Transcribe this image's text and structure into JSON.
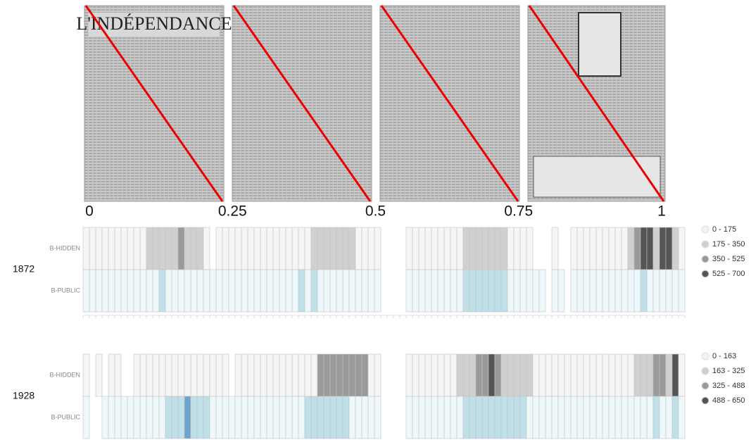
{
  "pages": {
    "newspaper_title": "L'INDÉPENDANCE",
    "ticks": [
      0,
      0.25,
      0.5,
      0.75,
      1
    ]
  },
  "chart_data": [
    {
      "type": "heatmap",
      "title": "1872",
      "bin_edges": [
        0,
        175,
        350,
        525,
        700
      ],
      "legend": {
        "labels": [
          "0 - 175",
          "175 - 350",
          "350 - 525",
          "525 - 700"
        ],
        "colors": [
          "#f3f3f3",
          "#cfcfcf",
          "#9a9a9a",
          "#555555"
        ]
      },
      "series": [
        {
          "name": "B-HIDDEN",
          "colors": [
            "#f5f5f5",
            "#d0d0d0",
            "#9a9a9a",
            "#555555"
          ],
          "values": [
            40,
            40,
            40,
            40,
            40,
            40,
            40,
            40,
            40,
            40,
            260,
            260,
            260,
            260,
            260,
            440,
            260,
            260,
            260,
            40,
            null,
            40,
            40,
            40,
            40,
            40,
            40,
            40,
            40,
            40,
            40,
            40,
            40,
            40,
            40,
            40,
            260,
            260,
            260,
            260,
            260,
            260,
            260,
            40,
            40,
            40,
            40,
            null,
            null,
            null,
            null,
            40,
            40,
            40,
            40,
            40,
            40,
            40,
            40,
            40,
            260,
            260,
            260,
            260,
            260,
            260,
            260,
            40,
            40,
            40,
            40,
            null,
            null,
            null,
            40,
            null,
            null,
            40,
            40,
            40,
            40,
            40,
            40,
            40,
            40,
            40,
            260,
            440,
            610,
            610,
            260,
            610,
            610,
            260,
            40
          ]
        },
        {
          "name": "B-PUBLIC",
          "colors": [
            "#eef8fa",
            "#bfe0e8",
            "#6ea3cc",
            "#3f6f9a"
          ],
          "values": [
            40,
            40,
            40,
            40,
            40,
            40,
            40,
            40,
            40,
            40,
            40,
            40,
            260,
            40,
            40,
            40,
            40,
            40,
            40,
            40,
            40,
            40,
            40,
            40,
            40,
            40,
            40,
            40,
            40,
            40,
            40,
            40,
            40,
            40,
            260,
            40,
            260,
            40,
            40,
            40,
            40,
            40,
            40,
            40,
            40,
            40,
            40,
            null,
            null,
            null,
            null,
            40,
            40,
            40,
            40,
            40,
            40,
            40,
            40,
            40,
            260,
            260,
            260,
            260,
            260,
            260,
            260,
            40,
            40,
            40,
            40,
            40,
            40,
            null,
            40,
            40,
            null,
            40,
            40,
            40,
            40,
            40,
            40,
            40,
            40,
            40,
            40,
            40,
            260,
            40,
            40,
            40,
            40,
            40,
            40
          ]
        }
      ]
    },
    {
      "type": "heatmap",
      "title": "1928",
      "bin_edges": [
        0,
        163,
        325,
        488,
        650
      ],
      "legend": {
        "labels": [
          "0 - 163",
          "163 - 325",
          "325 - 488",
          "488 - 650"
        ],
        "colors": [
          "#f3f3f3",
          "#cfcfcf",
          "#9a9a9a",
          "#555555"
        ]
      },
      "series": [
        {
          "name": "B-HIDDEN",
          "colors": [
            "#f5f5f5",
            "#d0d0d0",
            "#9a9a9a",
            "#555555"
          ],
          "values": [
            40,
            null,
            40,
            null,
            40,
            40,
            null,
            null,
            40,
            40,
            40,
            40,
            40,
            40,
            40,
            40,
            40,
            40,
            40,
            40,
            40,
            40,
            40,
            null,
            40,
            40,
            40,
            40,
            40,
            40,
            40,
            40,
            40,
            40,
            40,
            40,
            40,
            400,
            400,
            400,
            400,
            400,
            400,
            400,
            400,
            40,
            40,
            null,
            null,
            null,
            null,
            40,
            40,
            40,
            40,
            40,
            40,
            40,
            40,
            240,
            240,
            240,
            400,
            400,
            570,
            400,
            240,
            240,
            240,
            240,
            240,
            40,
            40,
            40,
            40,
            40,
            40,
            40,
            40,
            40,
            40,
            40,
            40,
            40,
            40,
            40,
            40,
            240,
            240,
            240,
            400,
            400,
            240,
            570,
            40
          ]
        },
        {
          "name": "B-PUBLIC",
          "colors": [
            "#eef8fa",
            "#bfe0e8",
            "#6ea3cc",
            "#3f6f9a"
          ],
          "values": [
            40,
            null,
            null,
            40,
            40,
            40,
            40,
            40,
            40,
            40,
            40,
            40,
            40,
            240,
            240,
            240,
            400,
            240,
            240,
            240,
            40,
            40,
            40,
            40,
            40,
            40,
            40,
            40,
            40,
            40,
            40,
            40,
            40,
            40,
            40,
            240,
            240,
            240,
            240,
            240,
            240,
            240,
            40,
            40,
            40,
            40,
            40,
            null,
            null,
            null,
            null,
            40,
            40,
            40,
            40,
            40,
            40,
            40,
            40,
            40,
            240,
            240,
            240,
            240,
            240,
            240,
            240,
            240,
            240,
            240,
            40,
            40,
            40,
            40,
            40,
            40,
            40,
            40,
            40,
            40,
            40,
            40,
            40,
            40,
            40,
            40,
            40,
            40,
            40,
            40,
            240,
            40,
            40,
            240,
            40
          ]
        }
      ]
    }
  ]
}
